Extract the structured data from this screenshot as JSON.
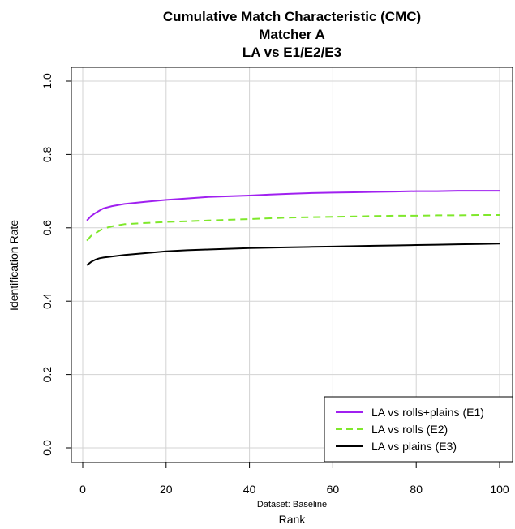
{
  "chart_data": {
    "type": "line",
    "title": "Cumulative Match Characteristic (CMC)",
    "subtitle1": "Matcher A",
    "subtitle2": "LA vs E1/E2/E3",
    "xlabel": "Rank",
    "ylabel": "Identification Rate",
    "caption": "Dataset: Baseline",
    "xlim": [
      1,
      100
    ],
    "ylim": [
      0.0,
      1.0
    ],
    "x_ticks": [
      "0",
      "20",
      "40",
      "60",
      "80",
      "100"
    ],
    "y_ticks": [
      "0.0",
      "0.2",
      "0.4",
      "0.6",
      "0.8",
      "1.0"
    ],
    "grid": true,
    "legend_position": "bottom-right",
    "x": [
      1,
      2,
      3,
      4,
      5,
      7,
      10,
      15,
      20,
      25,
      30,
      35,
      40,
      45,
      50,
      55,
      60,
      65,
      70,
      75,
      80,
      85,
      90,
      95,
      100
    ],
    "series": [
      {
        "name": "LA vs rolls+plains (E1)",
        "color": "#a020f0",
        "dash": "solid",
        "values": [
          0.62,
          0.632,
          0.64,
          0.647,
          0.653,
          0.659,
          0.665,
          0.671,
          0.676,
          0.68,
          0.684,
          0.686,
          0.688,
          0.691,
          0.693,
          0.695,
          0.696,
          0.697,
          0.698,
          0.699,
          0.7,
          0.7,
          0.701,
          0.701,
          0.701
        ]
      },
      {
        "name": "LA vs rolls (E2)",
        "color": "#7fe82b",
        "dash": "dashed",
        "values": [
          0.565,
          0.578,
          0.585,
          0.592,
          0.598,
          0.604,
          0.61,
          0.613,
          0.616,
          0.618,
          0.62,
          0.622,
          0.624,
          0.626,
          0.628,
          0.629,
          0.63,
          0.631,
          0.632,
          0.633,
          0.633,
          0.634,
          0.634,
          0.635,
          0.635
        ]
      },
      {
        "name": "LA vs plains (E3)",
        "color": "#000000",
        "dash": "solid",
        "values": [
          0.498,
          0.507,
          0.513,
          0.517,
          0.519,
          0.522,
          0.526,
          0.531,
          0.536,
          0.539,
          0.541,
          0.543,
          0.545,
          0.546,
          0.547,
          0.548,
          0.549,
          0.55,
          0.551,
          0.552,
          0.553,
          0.554,
          0.555,
          0.556,
          0.557
        ]
      }
    ]
  }
}
